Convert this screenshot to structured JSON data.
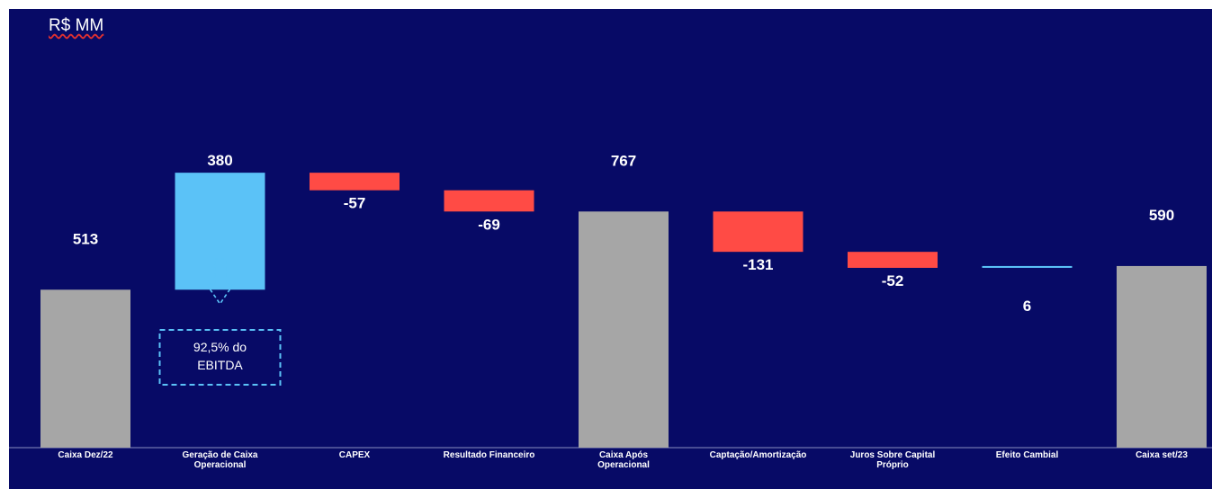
{
  "chart_data": {
    "type": "waterfall",
    "unit_label": "R$ MM",
    "steps": [
      {
        "label": [
          "Caixa Dez/22"
        ],
        "value": 513,
        "kind": "total",
        "value_label": "513"
      },
      {
        "label": [
          "Geração de Caixa",
          "Operacional"
        ],
        "value": 380,
        "kind": "increase",
        "value_label": "380"
      },
      {
        "label": [
          "CAPEX"
        ],
        "value": -57,
        "kind": "decrease",
        "value_label": "-57"
      },
      {
        "label": [
          "Resultado Financeiro"
        ],
        "value": -69,
        "kind": "decrease",
        "value_label": "-69"
      },
      {
        "label": [
          "Caixa Após",
          "Operacional"
        ],
        "value": 767,
        "kind": "total",
        "value_label": "767"
      },
      {
        "label": [
          "Captação/Amortização"
        ],
        "value": -131,
        "kind": "decrease",
        "value_label": "-131"
      },
      {
        "label": [
          "Juros Sobre Capital",
          "Próprio"
        ],
        "value": -52,
        "kind": "decrease",
        "value_label": "-52"
      },
      {
        "label": [
          "Efeito Cambial"
        ],
        "value": 6,
        "kind": "increase",
        "value_label": "6"
      },
      {
        "label": [
          "Caixa set/23"
        ],
        "value": 590,
        "kind": "total",
        "value_label": "590"
      }
    ],
    "annotation": {
      "lines": [
        "92,5% do",
        "EBITDA"
      ]
    },
    "colors": {
      "background": "#070a66",
      "total": "#a6a6a6",
      "increase": "#5bc2f7",
      "decrease": "#ff4b45",
      "text": "#ffffff",
      "axis": "#8a8fc0"
    }
  }
}
